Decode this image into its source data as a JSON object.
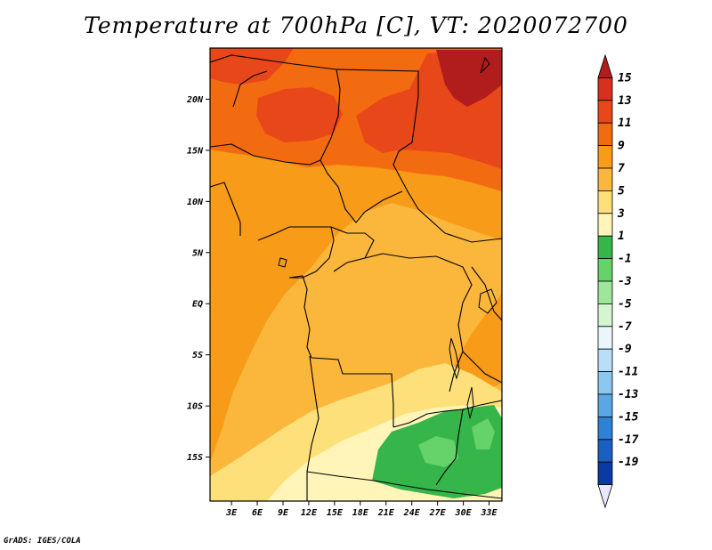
{
  "title": "Temperature at 700hPa [C], VT: 2020072700",
  "credit": "GrADS: IGES/COLA",
  "map": {
    "lat_labels": [
      {
        "label": "20N",
        "lat": 20
      },
      {
        "label": "15N",
        "lat": 15
      },
      {
        "label": "10N",
        "lat": 10
      },
      {
        "label": "5N",
        "lat": 5
      },
      {
        "label": "EQ",
        "lat": 0
      },
      {
        "label": "5S",
        "lat": -5
      },
      {
        "label": "10S",
        "lat": -10
      },
      {
        "label": "15S",
        "lat": -15
      }
    ],
    "lon_labels": [
      {
        "label": "3E",
        "lon": 3
      },
      {
        "label": "6E",
        "lon": 6
      },
      {
        "label": "9E",
        "lon": 9
      },
      {
        "label": "12E",
        "lon": 12
      },
      {
        "label": "15E",
        "lon": 15
      },
      {
        "label": "18E",
        "lon": 18
      },
      {
        "label": "21E",
        "lon": 21
      },
      {
        "label": "24E",
        "lon": 24
      },
      {
        "label": "27E",
        "lon": 27
      },
      {
        "label": "30E",
        "lon": 30
      },
      {
        "label": "33E",
        "lon": 33
      }
    ]
  },
  "colorbar": {
    "levels": [
      {
        "label": "15",
        "color": "#d7301f"
      },
      {
        "label": "13",
        "color": "#e8471a"
      },
      {
        "label": "11",
        "color": "#f26b10"
      },
      {
        "label": "9",
        "color": "#f79b18"
      },
      {
        "label": "7",
        "color": "#fbb63c"
      },
      {
        "label": "5",
        "color": "#fde07a"
      },
      {
        "label": "3",
        "color": "#fff5b8"
      },
      {
        "label": "1",
        "color": "#35b54a"
      },
      {
        "label": "-1",
        "color": "#66d36a"
      },
      {
        "label": "-3",
        "color": "#9ee69b"
      },
      {
        "label": "-5",
        "color": "#d4f5d0"
      },
      {
        "label": "-7",
        "color": "#eaf6fc"
      },
      {
        "label": "-9",
        "color": "#b8dff7"
      },
      {
        "label": "-11",
        "color": "#8cc7f0"
      },
      {
        "label": "-13",
        "color": "#5aa7e6"
      },
      {
        "label": "-15",
        "color": "#2d82d6"
      },
      {
        "label": "-17",
        "color": "#1a5fc2"
      },
      {
        "label": "-19",
        "color": "#0c3aa3"
      }
    ],
    "top_color": "#b11d1d",
    "bottom_color": "#0a0f6e",
    "below_color": "#e8e8ff"
  }
}
